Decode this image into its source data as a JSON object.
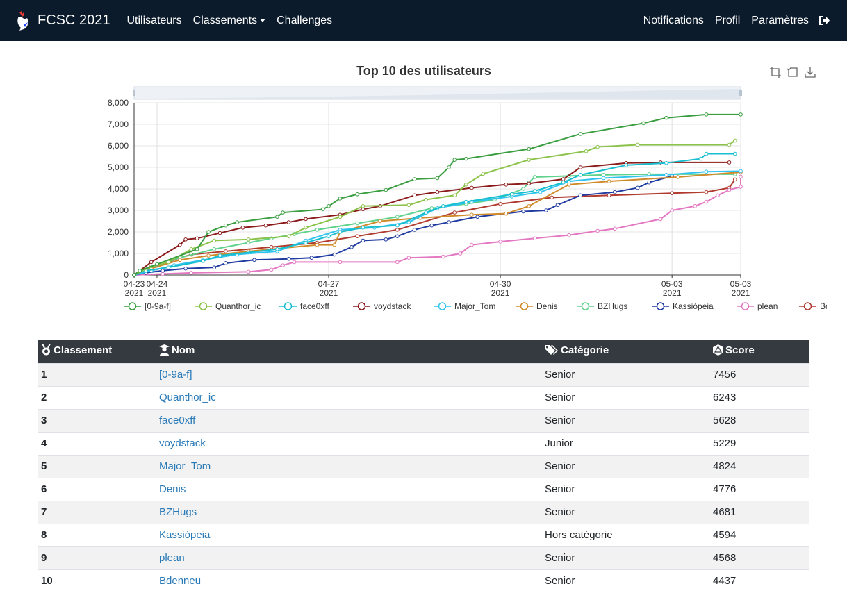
{
  "nav": {
    "brand": "FCSC 2021",
    "links": [
      "Utilisateurs",
      "Classements",
      "Challenges"
    ],
    "right_links": [
      "Notifications",
      "Profil",
      "Paramètres"
    ]
  },
  "chart_data": {
    "type": "line",
    "title": "Top 10 des utilisateurs",
    "x_ticks": [
      {
        "date": "04-23",
        "year": "2021"
      },
      {
        "date": "04-24",
        "year": "2021"
      },
      {
        "date": "04-27",
        "year": "2021"
      },
      {
        "date": "04-30",
        "year": "2021"
      },
      {
        "date": "05-03",
        "year": "2021"
      },
      {
        "date": "05-03",
        "year": "2021"
      }
    ],
    "y_ticks": [
      "8,000",
      "7,000",
      "6,000",
      "5,000",
      "4,000",
      "3,000",
      "2,000",
      "1,000",
      "0"
    ],
    "ylim": [
      0,
      8000
    ],
    "legend_position": "bottom",
    "series": [
      {
        "name": "[0-9a-f]",
        "color": "#3a9e40",
        "points": [
          [
            0,
            0
          ],
          [
            0.1,
            200
          ],
          [
            0.4,
            500
          ],
          [
            1.1,
            1200
          ],
          [
            1.3,
            2000
          ],
          [
            1.6,
            2300
          ],
          [
            1.8,
            2450
          ],
          [
            2.5,
            2700
          ],
          [
            2.6,
            2900
          ],
          [
            3.3,
            3050
          ],
          [
            3.4,
            3200
          ],
          [
            3.6,
            3550
          ],
          [
            3.9,
            3750
          ],
          [
            4.4,
            3950
          ],
          [
            4.9,
            4450
          ],
          [
            5.3,
            4500
          ],
          [
            5.5,
            5000
          ],
          [
            5.6,
            5350
          ],
          [
            5.8,
            5400
          ],
          [
            6.9,
            5850
          ],
          [
            7.8,
            6550
          ],
          [
            8.9,
            7050
          ],
          [
            9.3,
            7300
          ],
          [
            10.0,
            7456
          ],
          [
            10.6,
            7456
          ]
        ]
      },
      {
        "name": "Quanthor_ic",
        "color": "#8bc34a",
        "points": [
          [
            0,
            0
          ],
          [
            0.3,
            400
          ],
          [
            0.6,
            600
          ],
          [
            1.0,
            1200
          ],
          [
            1.4,
            1600
          ],
          [
            2.0,
            1650
          ],
          [
            2.7,
            1800
          ],
          [
            3.0,
            2200
          ],
          [
            3.6,
            2700
          ],
          [
            4.0,
            3200
          ],
          [
            4.8,
            3250
          ],
          [
            5.1,
            3500
          ],
          [
            5.6,
            3700
          ],
          [
            5.8,
            4200
          ],
          [
            6.1,
            4700
          ],
          [
            6.9,
            5350
          ],
          [
            7.9,
            5750
          ],
          [
            8.1,
            5950
          ],
          [
            8.8,
            6050
          ],
          [
            10.4,
            6050
          ],
          [
            10.5,
            6243
          ]
        ]
      },
      {
        "name": "face0xff",
        "color": "#17becf",
        "points": [
          [
            0,
            0
          ],
          [
            0.2,
            200
          ],
          [
            0.6,
            350
          ],
          [
            1.2,
            650
          ],
          [
            1.5,
            900
          ],
          [
            2.5,
            1200
          ],
          [
            3.0,
            1500
          ],
          [
            3.4,
            1800
          ],
          [
            3.6,
            2000
          ],
          [
            4.0,
            2200
          ],
          [
            4.6,
            2300
          ],
          [
            5.1,
            2900
          ],
          [
            5.4,
            3200
          ],
          [
            5.8,
            3400
          ],
          [
            6.6,
            3750
          ],
          [
            7.0,
            3900
          ],
          [
            7.5,
            4300
          ],
          [
            7.8,
            4650
          ],
          [
            8.6,
            5100
          ],
          [
            9.3,
            5200
          ],
          [
            9.9,
            5400
          ],
          [
            10.0,
            5628
          ],
          [
            10.5,
            5628
          ]
        ]
      },
      {
        "name": "voydstack",
        "color": "#8b1a1a",
        "points": [
          [
            0,
            0
          ],
          [
            0.3,
            600
          ],
          [
            0.8,
            1400
          ],
          [
            0.9,
            1650
          ],
          [
            1.1,
            1700
          ],
          [
            1.5,
            1950
          ],
          [
            1.9,
            2200
          ],
          [
            2.3,
            2300
          ],
          [
            2.7,
            2450
          ],
          [
            3.0,
            2600
          ],
          [
            3.6,
            2800
          ],
          [
            4.0,
            3050
          ],
          [
            4.3,
            3200
          ],
          [
            4.9,
            3700
          ],
          [
            5.3,
            3850
          ],
          [
            5.9,
            4050
          ],
          [
            6.5,
            4200
          ],
          [
            6.9,
            4250
          ],
          [
            7.5,
            4450
          ],
          [
            7.8,
            5000
          ],
          [
            8.6,
            5200
          ],
          [
            9.2,
            5229
          ],
          [
            10.4,
            5229
          ]
        ]
      },
      {
        "name": "Major_Tom",
        "color": "#2fc3ee",
        "points": [
          [
            0,
            0
          ],
          [
            0.3,
            200
          ],
          [
            0.7,
            450
          ],
          [
            1.2,
            700
          ],
          [
            1.8,
            950
          ],
          [
            2.5,
            1100
          ],
          [
            3.0,
            1600
          ],
          [
            3.6,
            2100
          ],
          [
            4.2,
            2200
          ],
          [
            4.8,
            2450
          ],
          [
            5.3,
            3100
          ],
          [
            5.9,
            3400
          ],
          [
            6.6,
            3650
          ],
          [
            7.1,
            3850
          ],
          [
            7.6,
            4350
          ],
          [
            8.2,
            4500
          ],
          [
            9.3,
            4650
          ],
          [
            10.0,
            4800
          ],
          [
            10.6,
            4824
          ]
        ]
      },
      {
        "name": "Denis",
        "color": "#d08a2a",
        "points": [
          [
            0,
            0
          ],
          [
            0.3,
            300
          ],
          [
            0.8,
            700
          ],
          [
            1.3,
            900
          ],
          [
            2.0,
            1100
          ],
          [
            2.6,
            1250
          ],
          [
            3.2,
            1400
          ],
          [
            3.5,
            1400
          ],
          [
            3.6,
            2000
          ],
          [
            4.3,
            2500
          ],
          [
            5.0,
            2650
          ],
          [
            5.9,
            2800
          ],
          [
            6.5,
            2850
          ],
          [
            6.9,
            3200
          ],
          [
            7.6,
            4200
          ],
          [
            8.3,
            4350
          ],
          [
            9.5,
            4550
          ],
          [
            10.6,
            4776
          ]
        ]
      },
      {
        "name": "BZHugs",
        "color": "#5ed18b",
        "points": [
          [
            0,
            0
          ],
          [
            0.3,
            350
          ],
          [
            0.8,
            800
          ],
          [
            1.4,
            1200
          ],
          [
            2.0,
            1500
          ],
          [
            2.4,
            1700
          ],
          [
            2.8,
            1900
          ],
          [
            3.2,
            2100
          ],
          [
            3.9,
            2400
          ],
          [
            4.6,
            2700
          ],
          [
            5.2,
            3100
          ],
          [
            5.8,
            3300
          ],
          [
            6.3,
            3500
          ],
          [
            6.8,
            4000
          ],
          [
            6.9,
            4300
          ],
          [
            7.0,
            4550
          ],
          [
            7.6,
            4600
          ],
          [
            8.2,
            4650
          ],
          [
            9.0,
            4681
          ],
          [
            10.5,
            4681
          ]
        ]
      },
      {
        "name": "Kassiópeia",
        "color": "#1f3aa0",
        "points": [
          [
            0,
            0
          ],
          [
            0.2,
            100
          ],
          [
            0.5,
            200
          ],
          [
            0.9,
            300
          ],
          [
            1.4,
            350
          ],
          [
            1.6,
            550
          ],
          [
            2.1,
            700
          ],
          [
            2.7,
            750
          ],
          [
            3.1,
            800
          ],
          [
            3.5,
            950
          ],
          [
            3.8,
            1300
          ],
          [
            4.0,
            1600
          ],
          [
            4.4,
            1650
          ],
          [
            4.6,
            1800
          ],
          [
            4.9,
            2100
          ],
          [
            5.2,
            2300
          ],
          [
            5.5,
            2450
          ],
          [
            6.0,
            2700
          ],
          [
            6.8,
            2950
          ],
          [
            7.2,
            3000
          ],
          [
            7.4,
            3250
          ],
          [
            7.8,
            3700
          ],
          [
            8.4,
            3850
          ],
          [
            8.8,
            4050
          ],
          [
            9.0,
            4300
          ],
          [
            9.4,
            4594
          ]
        ]
      },
      {
        "name": "plean",
        "color": "#e377c2",
        "points": [
          [
            0,
            0
          ],
          [
            0.5,
            50
          ],
          [
            1.0,
            100
          ],
          [
            2.0,
            150
          ],
          [
            2.4,
            250
          ],
          [
            2.6,
            450
          ],
          [
            2.8,
            600
          ],
          [
            3.6,
            600
          ],
          [
            4.6,
            600
          ],
          [
            4.8,
            800
          ],
          [
            5.4,
            850
          ],
          [
            5.7,
            1000
          ],
          [
            5.9,
            1400
          ],
          [
            6.4,
            1550
          ],
          [
            7.0,
            1700
          ],
          [
            7.6,
            1850
          ],
          [
            8.1,
            2050
          ],
          [
            8.4,
            2150
          ],
          [
            9.2,
            2600
          ],
          [
            9.4,
            3000
          ],
          [
            9.8,
            3200
          ],
          [
            10.0,
            3400
          ],
          [
            10.2,
            3700
          ],
          [
            10.4,
            3950
          ],
          [
            10.6,
            4100
          ],
          [
            10.6,
            4568
          ]
        ]
      },
      {
        "name": "Bdenneu",
        "color": "#b03a2e",
        "points": [
          [
            0,
            0
          ],
          [
            0.3,
            300
          ],
          [
            0.8,
            800
          ],
          [
            1.0,
            950
          ],
          [
            1.6,
            1100
          ],
          [
            2.4,
            1300
          ],
          [
            3.2,
            1500
          ],
          [
            3.9,
            1800
          ],
          [
            4.6,
            2100
          ],
          [
            5.6,
            2900
          ],
          [
            6.4,
            3300
          ],
          [
            7.3,
            3600
          ],
          [
            8.3,
            3700
          ],
          [
            9.4,
            3800
          ],
          [
            10.0,
            3850
          ],
          [
            10.4,
            4050
          ],
          [
            10.5,
            4437
          ]
        ]
      }
    ]
  },
  "table": {
    "headers": [
      "Classement",
      "Nom",
      "Catégorie",
      "Score"
    ],
    "rows": [
      {
        "rank": "1",
        "name": "[0-9a-f]",
        "category": "Senior",
        "score": "7456"
      },
      {
        "rank": "2",
        "name": "Quanthor_ic",
        "category": "Senior",
        "score": "6243"
      },
      {
        "rank": "3",
        "name": "face0xff",
        "category": "Senior",
        "score": "5628"
      },
      {
        "rank": "4",
        "name": "voydstack",
        "category": "Junior",
        "score": "5229"
      },
      {
        "rank": "5",
        "name": "Major_Tom",
        "category": "Senior",
        "score": "4824"
      },
      {
        "rank": "6",
        "name": "Denis",
        "category": "Senior",
        "score": "4776"
      },
      {
        "rank": "7",
        "name": "BZHugs",
        "category": "Senior",
        "score": "4681"
      },
      {
        "rank": "8",
        "name": "Kassiópeia",
        "category": "Hors catégorie",
        "score": "4594"
      },
      {
        "rank": "9",
        "name": "plean",
        "category": "Senior",
        "score": "4568"
      },
      {
        "rank": "10",
        "name": "Bdenneu",
        "category": "Senior",
        "score": "4437"
      }
    ]
  }
}
